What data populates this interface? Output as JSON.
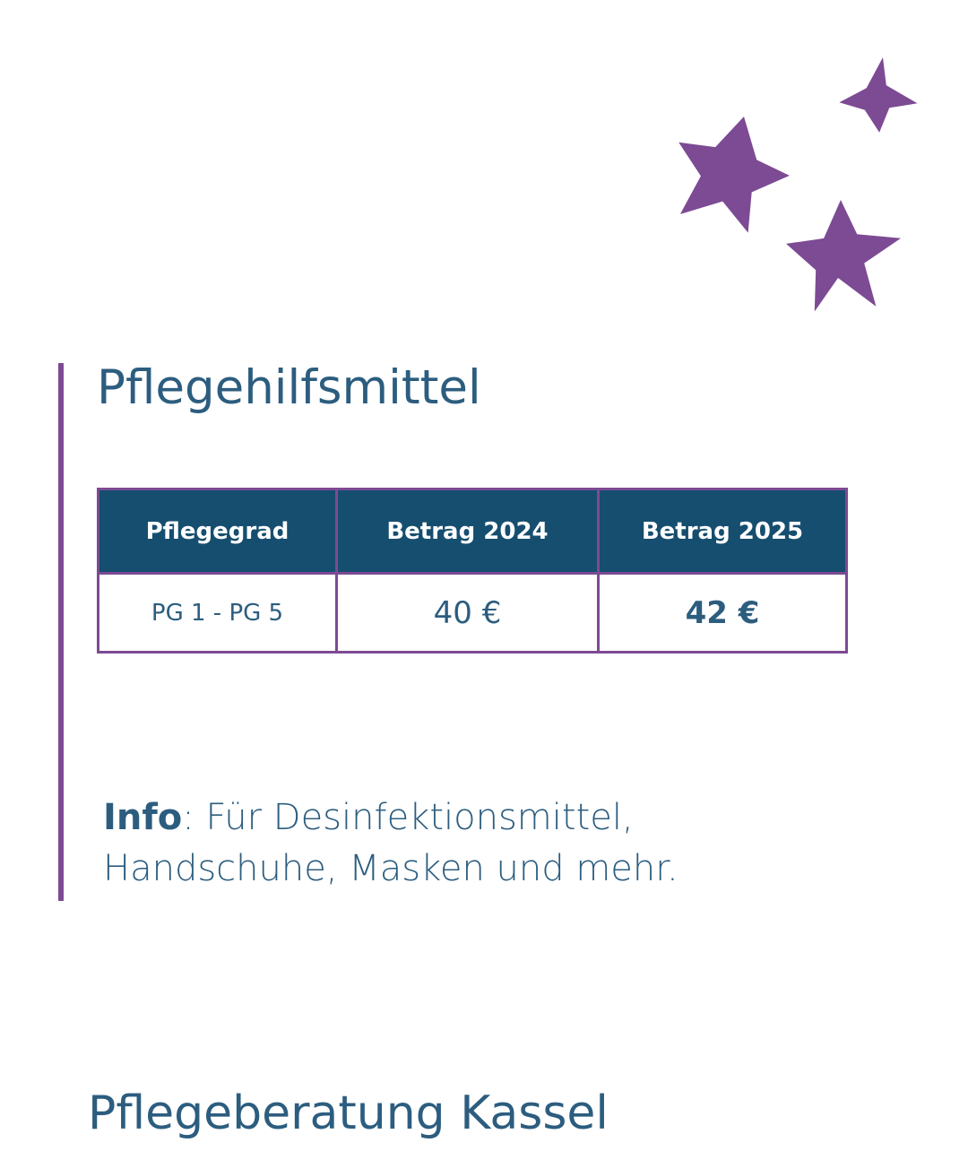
{
  "title": "Pflegehilfsmittel",
  "table": {
    "headers": [
      "Pflegegrad",
      "Betrag 2024",
      "Betrag 2025"
    ],
    "rows": [
      {
        "grade": "PG 1 - PG 5",
        "amount_2024": "40 €",
        "amount_2025": "42 €"
      }
    ]
  },
  "info": {
    "label": "Info",
    "text": ": Für Desinfektionsmittel, Handschuhe, Masken und mehr."
  },
  "footer": "Pflegeberatung Kassel",
  "colors": {
    "star": "#7d4a94",
    "accent_bar": "#7d4a94",
    "header_bg": "#164e6f",
    "text": "#2c5d7f"
  },
  "icons": [
    "star-icon",
    "star-icon",
    "star-icon"
  ]
}
